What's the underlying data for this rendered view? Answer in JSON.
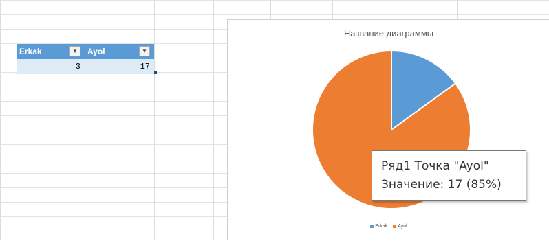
{
  "table": {
    "headers": [
      {
        "label": "Erkak",
        "filter_icon": "filter-dropdown-icon"
      },
      {
        "label": "Ayol",
        "filter_icon": "filter-dropdown-icon"
      }
    ],
    "values": [
      "3",
      "17"
    ],
    "header_color": "#5b9bd5",
    "row_color": "#ddebf7"
  },
  "chart_data": {
    "type": "pie",
    "title": "Название диаграммы",
    "categories": [
      "Erkak",
      "Ayol"
    ],
    "values": [
      3,
      17
    ],
    "colors": [
      "#5b9bd5",
      "#ed7d31"
    ],
    "legend": "bottom"
  },
  "tooltip": {
    "line1": "Ряд1 Точка \"Ayol\"",
    "line2": "Значение: 17 (85%)"
  }
}
